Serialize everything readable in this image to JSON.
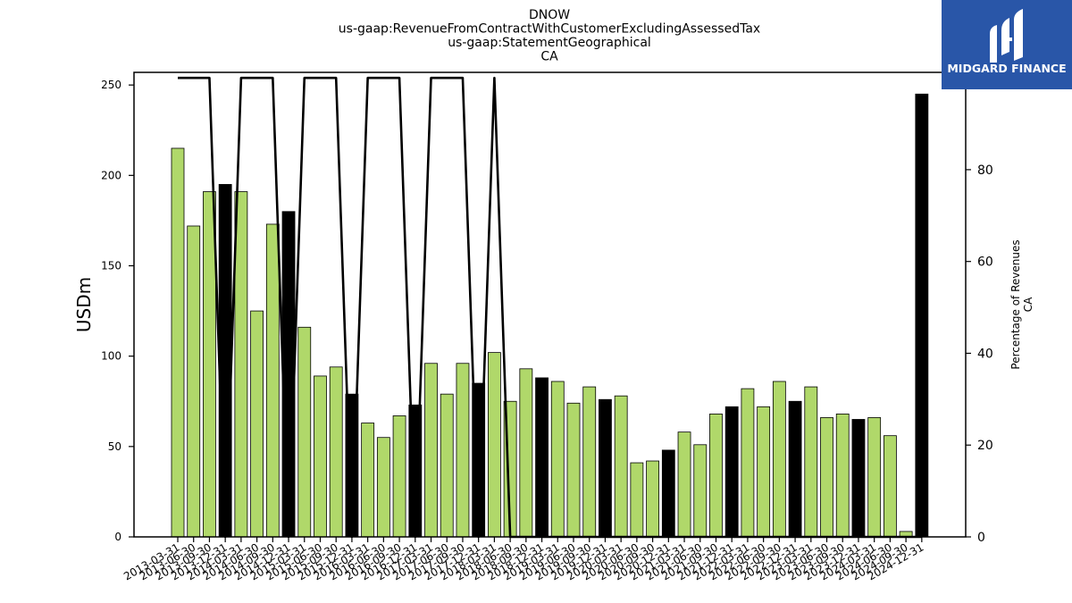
{
  "chart_data": {
    "type": "bar",
    "title_lines": [
      "DNOW",
      "us-gaap:RevenueFromContractWithCustomerExcludingAssessedTax",
      "us-gaap:StatementGeographical",
      "CA"
    ],
    "ylabel": "USDm",
    "y2label_lines": [
      "Percentage of Revenues",
      "CA"
    ],
    "ylim": [
      0,
      257
    ],
    "y2lim": [
      0,
      101.2
    ],
    "yticks": [
      0,
      50,
      100,
      150,
      200,
      250
    ],
    "y2ticks": [
      0,
      20,
      40,
      60,
      80,
      100
    ],
    "categories": [
      "2013-03-31",
      "2013-06-30",
      "2013-09-30",
      "2013-12-31",
      "2014-03-31",
      "2014-06-30",
      "2014-09-30",
      "2014-12-31",
      "2015-03-31",
      "2015-06-30",
      "2015-09-30",
      "2015-12-31",
      "2016-03-31",
      "2016-06-30",
      "2016-09-30",
      "2016-12-31",
      "2017-03-31",
      "2017-06-30",
      "2017-09-30",
      "2017-12-31",
      "2018-03-31",
      "2018-06-30",
      "2018-09-30",
      "2018-12-31",
      "2019-03-31",
      "2019-06-30",
      "2019-09-30",
      "2019-12-31",
      "2020-03-31",
      "2020-06-30",
      "2020-09-30",
      "2020-12-31",
      "2021-03-31",
      "2021-06-30",
      "2021-09-30",
      "2021-12-31",
      "2022-03-31",
      "2022-06-30",
      "2022-09-30",
      "2022-12-31",
      "2023-03-31",
      "2023-06-30",
      "2023-09-30",
      "2023-12-31",
      "2024-03-31",
      "2024-06-30",
      "2024-09-30",
      "2024-12-31"
    ],
    "series": [
      {
        "type": "bar",
        "axis": "left",
        "values": [
          215,
          172,
          191,
          195,
          191,
          125,
          173,
          180,
          116,
          89,
          94,
          79,
          63,
          55,
          67,
          73,
          96,
          79,
          96,
          85,
          102,
          75,
          93,
          88,
          86,
          74,
          83,
          76,
          78,
          41,
          42,
          48,
          58,
          51,
          68,
          72,
          82,
          72,
          86,
          75,
          83,
          66,
          68,
          65,
          66,
          56,
          3,
          245
        ]
      },
      {
        "type": "line",
        "axis": "right",
        "values": [
          100,
          100,
          100,
          0,
          100,
          100,
          100,
          0,
          100,
          100,
          100,
          0,
          100,
          100,
          100,
          0,
          100,
          100,
          100,
          0,
          100,
          0,
          0,
          0,
          0,
          0,
          0,
          0,
          0,
          0,
          0,
          0,
          0,
          0,
          0,
          0,
          0,
          0,
          0,
          0,
          0,
          0,
          0,
          0,
          0,
          0,
          0,
          0
        ]
      }
    ],
    "colors": {
      "bar_quarter": "#b0d86a",
      "bar_year_end": "#000000",
      "bar_edge": "#000000",
      "line": "#000000"
    },
    "grid": false
  },
  "logo": {
    "text": "MIDGARD FINANCE",
    "background": "#2956a8"
  }
}
